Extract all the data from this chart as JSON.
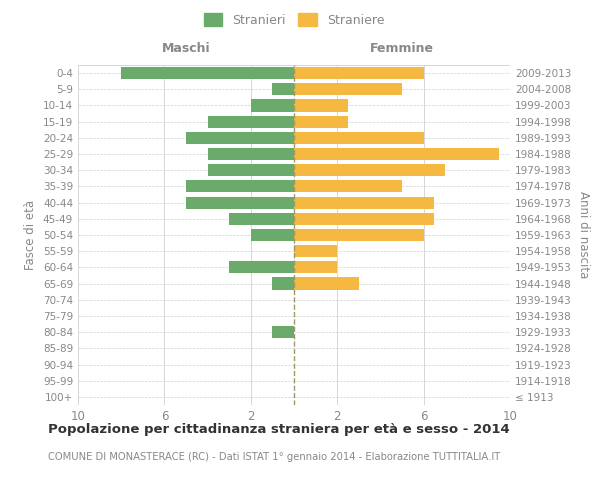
{
  "age_groups": [
    "100+",
    "95-99",
    "90-94",
    "85-89",
    "80-84",
    "75-79",
    "70-74",
    "65-69",
    "60-64",
    "55-59",
    "50-54",
    "45-49",
    "40-44",
    "35-39",
    "30-34",
    "25-29",
    "20-24",
    "15-19",
    "10-14",
    "5-9",
    "0-4"
  ],
  "birth_years": [
    "≤ 1913",
    "1914-1918",
    "1919-1923",
    "1924-1928",
    "1929-1933",
    "1934-1938",
    "1939-1943",
    "1944-1948",
    "1949-1953",
    "1954-1958",
    "1959-1963",
    "1964-1968",
    "1969-1973",
    "1974-1978",
    "1979-1983",
    "1984-1988",
    "1989-1993",
    "1994-1998",
    "1999-2003",
    "2004-2008",
    "2009-2013"
  ],
  "males": [
    0,
    0,
    0,
    0,
    1,
    0,
    0,
    1,
    3,
    0,
    2,
    3,
    5,
    5,
    4,
    4,
    5,
    4,
    2,
    1,
    8
  ],
  "females": [
    0,
    0,
    0,
    0,
    0,
    0,
    0,
    3,
    2,
    2,
    6,
    6.5,
    6.5,
    5,
    7,
    9.5,
    6,
    2.5,
    2.5,
    5,
    6
  ],
  "male_color": "#6aaa6a",
  "female_color": "#f5b942",
  "title": "Popolazione per cittadinanza straniera per età e sesso - 2014",
  "subtitle": "COMUNE DI MONASTERACE (RC) - Dati ISTAT 1° gennaio 2014 - Elaborazione TUTTITALIA.IT",
  "ylabel_left": "Fasce di età",
  "ylabel_right": "Anni di nascita",
  "xlabel_left": "Maschi",
  "xlabel_right": "Femmine",
  "legend_male": "Stranieri",
  "legend_female": "Straniere",
  "xlim": 10,
  "background_color": "#ffffff",
  "grid_color": "#d0d0d0",
  "text_color": "#888888",
  "bar_height": 0.75,
  "center_line_color": "#999966",
  "xtick_positions": [
    -10,
    -6,
    -2,
    2,
    6,
    10
  ],
  "xtick_labels": [
    "10",
    "6",
    "2",
    "2",
    "6",
    "10"
  ]
}
